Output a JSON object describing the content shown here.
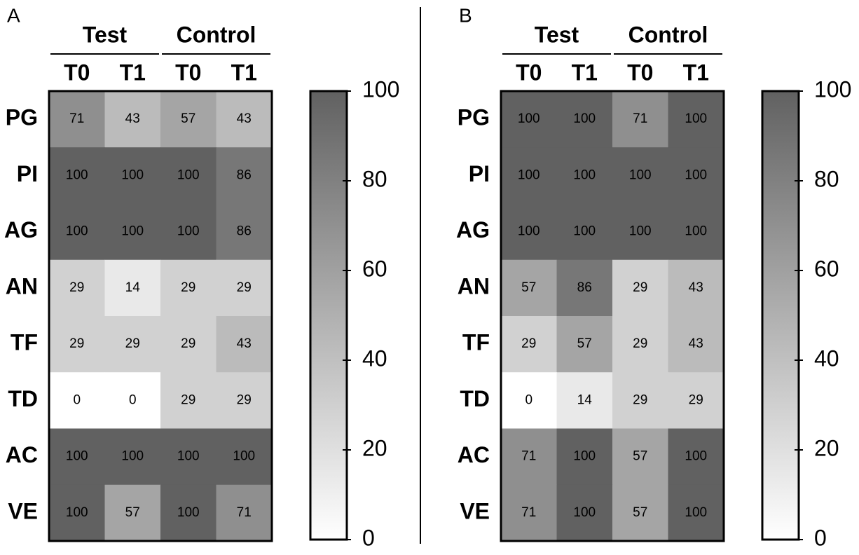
{
  "chart_data": [
    {
      "type": "heatmap",
      "panel": "A",
      "groups": [
        {
          "name": "Test"
        },
        {
          "name": "Control"
        }
      ],
      "x_categories": [
        "T0",
        "T1",
        "T0",
        "T1"
      ],
      "y_categories": [
        "PG",
        "PI",
        "AG",
        "AN",
        "TF",
        "TD",
        "AC",
        "VE"
      ],
      "values": [
        [
          71,
          43,
          57,
          43
        ],
        [
          100,
          100,
          100,
          86
        ],
        [
          100,
          100,
          100,
          86
        ],
        [
          29,
          14,
          29,
          29
        ],
        [
          29,
          29,
          29,
          43
        ],
        [
          0,
          0,
          29,
          29
        ],
        [
          100,
          100,
          100,
          100
        ],
        [
          100,
          57,
          100,
          71
        ]
      ],
      "colormap": [
        "#ffffff",
        "#616161"
      ],
      "clim": [
        0,
        100
      ],
      "cticks": [
        0,
        20,
        40,
        60,
        80,
        100
      ]
    },
    {
      "type": "heatmap",
      "panel": "B",
      "groups": [
        {
          "name": "Test"
        },
        {
          "name": "Control"
        }
      ],
      "x_categories": [
        "T0",
        "T1",
        "T0",
        "T1"
      ],
      "y_categories": [
        "PG",
        "PI",
        "AG",
        "AN",
        "TF",
        "TD",
        "AC",
        "VE"
      ],
      "values": [
        [
          100,
          100,
          71,
          100
        ],
        [
          100,
          100,
          100,
          100
        ],
        [
          100,
          100,
          100,
          100
        ],
        [
          57,
          86,
          29,
          43
        ],
        [
          29,
          57,
          29,
          43
        ],
        [
          0,
          14,
          29,
          29
        ],
        [
          71,
          100,
          57,
          100
        ],
        [
          71,
          100,
          57,
          100
        ]
      ],
      "colormap": [
        "#ffffff",
        "#616161"
      ],
      "clim": [
        0,
        100
      ],
      "cticks": [
        0,
        20,
        40,
        60,
        80,
        100
      ]
    }
  ]
}
